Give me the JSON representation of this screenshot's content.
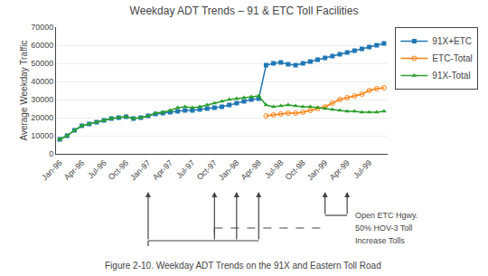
{
  "chart_data": {
    "type": "line",
    "title": "Weekday ADT Trends – 91 & ETC Toll Facilities",
    "y_label": "Average Weekday Traffic",
    "caption": "Figure 2-10. Weekday ADT Trends on the 91X and Eastern Toll Road",
    "categories": [
      "Jan-96",
      null,
      null,
      "Apr-96",
      null,
      null,
      "Jul-96",
      null,
      null,
      "Oct-96",
      null,
      null,
      "Jan-97",
      null,
      null,
      "Apr-97",
      null,
      null,
      "Jul-97",
      null,
      null,
      "Oct-97",
      null,
      null,
      "Jan-98",
      null,
      null,
      "Apr-98",
      null,
      null,
      "Jul-98",
      null,
      null,
      "Oct-98",
      null,
      null,
      "Jan-99",
      null,
      null,
      "Apr-99",
      null,
      null,
      "Jul-99",
      null,
      null
    ],
    "series": [
      {
        "name": "91X+ETC",
        "marker": "square",
        "line_style": "solid",
        "values": [
          8000,
          10000,
          13000,
          15500,
          16500,
          17500,
          18500,
          19500,
          20000,
          20500,
          19500,
          20000,
          21000,
          22000,
          22500,
          23000,
          23500,
          24000,
          24000,
          24500,
          25000,
          25500,
          26000,
          27000,
          28000,
          29000,
          30000,
          30500,
          49000,
          50000,
          50500,
          49500,
          49000,
          50000,
          51000,
          52000,
          53000,
          54000,
          55000,
          56000,
          57000,
          58000,
          59000,
          60000,
          61000
        ]
      },
      {
        "name": "ETC-Total",
        "marker": "circle-open",
        "line_style": "solid",
        "values": [
          null,
          null,
          null,
          null,
          null,
          null,
          null,
          null,
          null,
          null,
          null,
          null,
          null,
          null,
          null,
          null,
          null,
          null,
          null,
          null,
          null,
          null,
          null,
          null,
          null,
          null,
          null,
          null,
          21000,
          21500,
          22000,
          22500,
          22500,
          23000,
          24000,
          25000,
          26000,
          28000,
          30000,
          31000,
          32000,
          33000,
          35000,
          36000,
          36500
        ]
      },
      {
        "name": "91X-Total",
        "marker": "triangle-up",
        "line_style": "solid",
        "values": [
          8000,
          10000,
          13000,
          15500,
          16500,
          17500,
          18500,
          19500,
          20000,
          20500,
          19500,
          20000,
          21000,
          22500,
          23000,
          24000,
          25500,
          26000,
          25500,
          26000,
          27000,
          28000,
          29000,
          30000,
          30500,
          31000,
          31500,
          32000,
          27000,
          26000,
          26500,
          27000,
          26500,
          26000,
          26000,
          25500,
          25000,
          24500,
          24000,
          23500,
          23500,
          23000,
          23000,
          23000,
          23500
        ]
      }
    ],
    "ylim": [
      0,
      70000
    ],
    "yticks": [
      0,
      10000,
      20000,
      30000,
      40000,
      50000,
      60000,
      70000
    ],
    "grid": true,
    "legend": "outside right",
    "annotations": [
      {
        "text": "Open ETC Hgwy.",
        "start": "Jan-99",
        "end": "Apr-99",
        "line_style": "solid",
        "arrows": [
          "Jan-99",
          "Apr-99"
        ]
      },
      {
        "text": "50% HOV-3 Toll",
        "start": "Oct-97",
        "end": "Jan-99",
        "line_style": "dashed",
        "arrows": []
      },
      {
        "text": "Increase Tolls",
        "start": "Jan-97",
        "end": "Apr-98",
        "line_style": "solid",
        "arrows": [
          "Jan-97",
          "Oct-97",
          "Jan-98",
          "Apr-98"
        ]
      }
    ]
  }
}
